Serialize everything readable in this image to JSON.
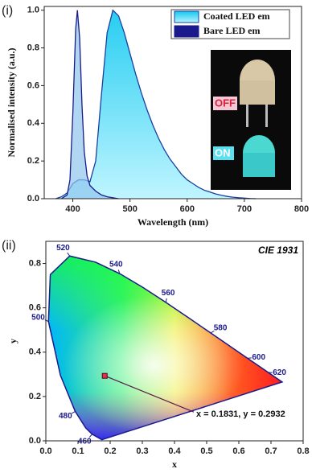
{
  "chart_data": [
    {
      "type": "area",
      "panel_label": "(i)",
      "x_label": "Wavelength (nm)",
      "y_label": "Normalised intensity (a.u.)",
      "xlim": [
        350,
        800
      ],
      "xticks": [
        400,
        500,
        600,
        700,
        800
      ],
      "ylim": [
        0,
        1.02
      ],
      "yticks": [
        {
          "value": 0,
          "label": "0.0"
        },
        0.2,
        0.4,
        0.6,
        0.8,
        {
          "value": 1,
          "label": "1.0"
        }
      ],
      "legend": "upper right",
      "series": [
        {
          "name": "Coated LED em",
          "color": "#2ad4f0",
          "stroke": "#1a3fa0",
          "x": [
            370,
            380,
            390,
            400,
            410,
            420,
            430,
            440,
            450,
            460,
            470,
            480,
            490,
            500,
            510,
            520,
            530,
            540,
            550,
            560,
            570,
            580,
            590,
            600,
            610,
            620,
            630,
            640,
            650,
            660,
            670,
            680,
            690,
            700,
            710,
            720
          ],
          "values": [
            0,
            0.01,
            0.03,
            0.08,
            0.1,
            0.1,
            0.09,
            0.2,
            0.55,
            0.88,
            1.0,
            0.97,
            0.88,
            0.77,
            0.66,
            0.56,
            0.47,
            0.39,
            0.32,
            0.26,
            0.21,
            0.17,
            0.13,
            0.1,
            0.08,
            0.06,
            0.045,
            0.035,
            0.025,
            0.018,
            0.012,
            0.008,
            0.005,
            0.003,
            0.001,
            0
          ]
        },
        {
          "name": "Bare LED em",
          "color": "#8fc4ec",
          "stroke": "#1a1a8c",
          "x": [
            380,
            390,
            395,
            400,
            405,
            408,
            412,
            416,
            420,
            425,
            430,
            440,
            450,
            460,
            480
          ],
          "values": [
            0,
            0.02,
            0.1,
            0.45,
            0.9,
            1.0,
            0.85,
            0.5,
            0.25,
            0.12,
            0.07,
            0.04,
            0.02,
            0.01,
            0
          ]
        }
      ],
      "inset_labels": [
        "OFF",
        "ON"
      ]
    },
    {
      "type": "cie",
      "panel_label": "(ii)",
      "title": "CIE 1931",
      "x_label": "x",
      "y_label": "y",
      "xlim": [
        0,
        0.8
      ],
      "xticks": [
        {
          "value": 0,
          "label": "0.0"
        },
        0.1,
        0.2,
        0.3,
        0.4,
        0.5,
        0.6,
        0.7,
        0.8
      ],
      "ylim": [
        0,
        0.9
      ],
      "yticks": [
        {
          "value": 0,
          "label": "0.0"
        },
        0.2,
        0.4,
        0.6,
        0.8
      ],
      "locus": {
        "color": "#1a1a8c",
        "wavelengths": [
          380,
          460,
          470,
          480,
          490,
          500,
          510,
          520,
          530,
          540,
          550,
          560,
          570,
          580,
          590,
          600,
          620,
          700
        ],
        "x": [
          0.1741,
          0.144,
          0.1241,
          0.0913,
          0.0454,
          0.0082,
          0.0139,
          0.0743,
          0.1547,
          0.2296,
          0.3016,
          0.3731,
          0.4441,
          0.5125,
          0.5752,
          0.627,
          0.6915,
          0.7347
        ],
        "y": [
          0.005,
          0.0297,
          0.0578,
          0.1327,
          0.295,
          0.5384,
          0.7502,
          0.8338,
          0.8059,
          0.7543,
          0.6923,
          0.6245,
          0.5547,
          0.4866,
          0.4242,
          0.3725,
          0.3083,
          0.2653
        ]
      },
      "wavelength_labels": [
        460,
        480,
        500,
        520,
        540,
        560,
        580,
        600,
        620
      ],
      "point": {
        "x": 0.1831,
        "y": 0.2932,
        "color": "#e0305a"
      },
      "annotation": "x = 0.1831, y = 0.2932"
    }
  ]
}
